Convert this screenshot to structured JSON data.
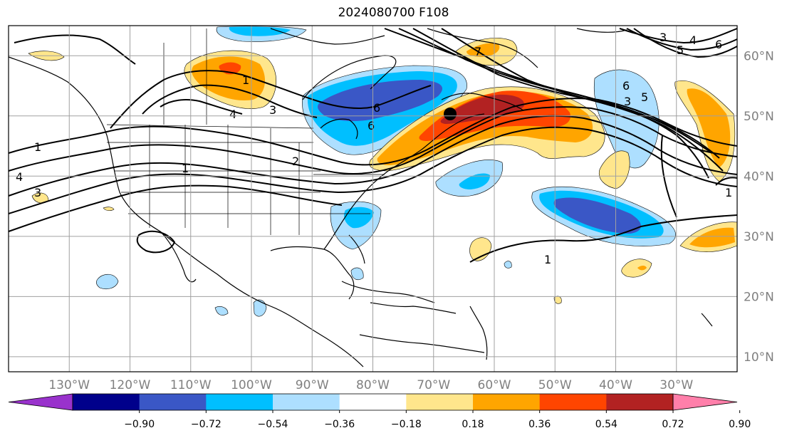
{
  "title": "2024080700 F108",
  "map": {
    "lon_range": [
      -140,
      -20
    ],
    "lat_range": [
      7.5,
      65
    ],
    "lon_ticks": [
      "130°W",
      "120°W",
      "110°W",
      "100°W",
      "90°W",
      "80°W",
      "70°W",
      "60°W",
      "50°W",
      "40°W",
      "30°W"
    ],
    "lat_ticks": [
      "60°N",
      "50°N",
      "40°N",
      "30°N",
      "20°N",
      "10°N"
    ],
    "gridlines": true,
    "contour_labels": [
      "1",
      "1",
      "3",
      "4",
      "4",
      "3",
      "1",
      "2",
      "6",
      "6",
      "6",
      "5",
      "3",
      "4",
      "6",
      "5",
      "3",
      "1",
      "1",
      "7"
    ]
  },
  "colorbar": {
    "levels": [
      "−0.90",
      "−0.72",
      "−0.54",
      "−0.36",
      "−0.18",
      "0.18",
      "0.36",
      "0.54",
      "0.72",
      "0.90"
    ],
    "colors": [
      "#9932CC",
      "#00008B",
      "#3A57C6",
      "#00BFFF",
      "#ADDFFF",
      "#FFFFFF",
      "#FFE68C",
      "#FFA500",
      "#FF4500",
      "#B22222",
      "#FF7FAA"
    ]
  }
}
